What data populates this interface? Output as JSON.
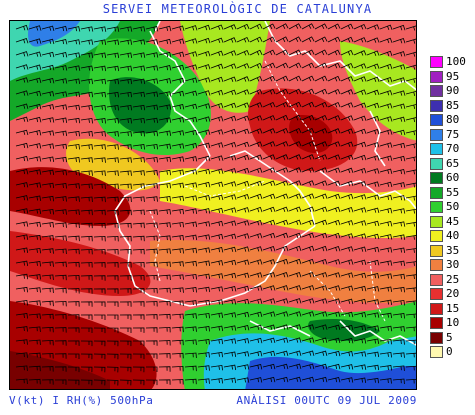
{
  "title": "SERVEI METEOROLÒGIC DE CATALUNYA",
  "footer": {
    "variables": "V(kt) I RH(%) 500hPa",
    "analysis": "ANÀLISI 00UTC 09 JUL 2009"
  },
  "legend": {
    "items": [
      {
        "label": "100",
        "color": "#ff00ff"
      },
      {
        "label": "95",
        "color": "#a020c0"
      },
      {
        "label": "90",
        "color": "#7030a0"
      },
      {
        "label": "85",
        "color": "#3d2fb0"
      },
      {
        "label": "80",
        "color": "#1f4fd8"
      },
      {
        "label": "75",
        "color": "#2f7fe8"
      },
      {
        "label": "70",
        "color": "#1fc0e8"
      },
      {
        "label": "65",
        "color": "#3fd6b0"
      },
      {
        "label": "60",
        "color": "#007a20"
      },
      {
        "label": "55",
        "color": "#14a828"
      },
      {
        "label": "50",
        "color": "#30d030"
      },
      {
        "label": "45",
        "color": "#a8e820"
      },
      {
        "label": "40",
        "color": "#f0f020"
      },
      {
        "label": "35",
        "color": "#f0c820"
      },
      {
        "label": "30",
        "color": "#f08040"
      },
      {
        "label": "25",
        "color": "#f06060"
      },
      {
        "label": "20",
        "color": "#e83030"
      },
      {
        "label": "15",
        "color": "#d01818"
      },
      {
        "label": "10",
        "color": "#a80000"
      },
      {
        "label": "5",
        "color": "#780000"
      },
      {
        "label": "0",
        "color": "#fff8b0"
      }
    ]
  }
}
